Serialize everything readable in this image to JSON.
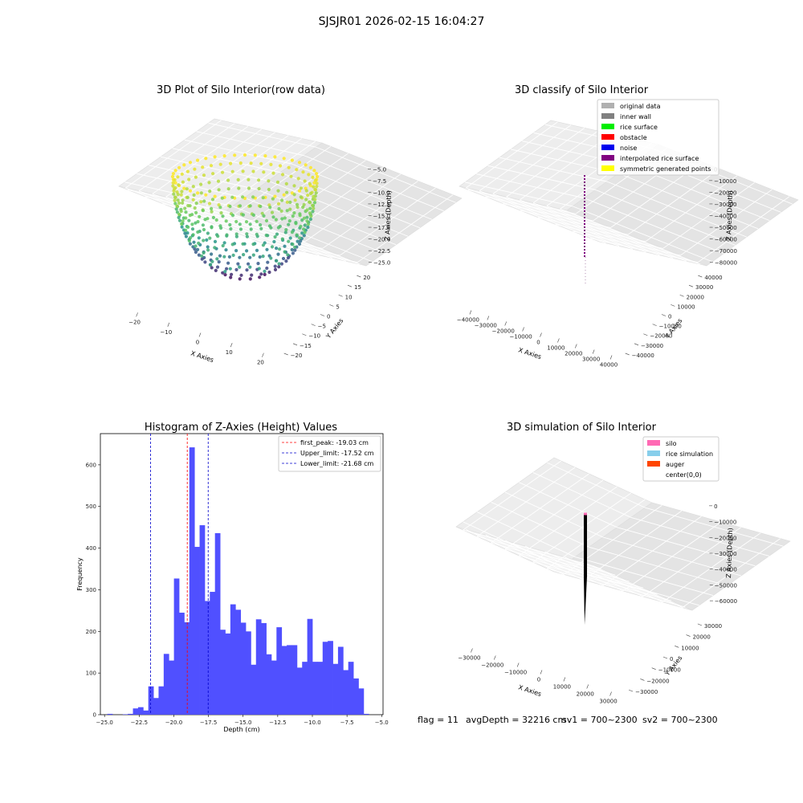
{
  "figure": {
    "title": "SJSJR01 2026-02-15 16:04:27",
    "status": {
      "flag": "flag = 11",
      "avg_depth": "avgDepth = 32216 cm",
      "sv1": "sv1 = 700~2300",
      "sv2": "sv2 = 700~2300"
    }
  },
  "panels": {
    "raw": {
      "title": "3D Plot of Silo Interior(row data)",
      "xlabel": "X Axies",
      "ylabel": "Y Axies",
      "zlabel": "Z Axies (Depth)",
      "xticks": [
        "−20",
        "−10",
        "0",
        "10",
        "20"
      ],
      "yticks": [
        "−20",
        "−15",
        "−10",
        "−5",
        "0",
        "5",
        "10",
        "15",
        "20"
      ],
      "zticks": [
        "−5.0",
        "−7.5",
        "−10.0",
        "−12.5",
        "−15.0",
        "−17.5",
        "−20.0",
        "−22.5",
        "−25.0"
      ]
    },
    "classify": {
      "title": "3D classify of Silo Interior",
      "xlabel": "X Axies",
      "ylabel": "Y Axies",
      "zlabel": "Z Axies (Depth)",
      "xticks": [
        "−40000",
        "−30000",
        "−20000",
        "−10000",
        "0",
        "10000",
        "20000",
        "30000",
        "40000"
      ],
      "yticks": [
        "−40000",
        "−30000",
        "−20000",
        "−10000",
        "0",
        "10000",
        "20000",
        "30000",
        "40000"
      ],
      "zticks": [
        "0",
        "−10000",
        "−20000",
        "−30000",
        "−40000",
        "−50000",
        "−60000",
        "−70000",
        "−80000"
      ],
      "legend": [
        {
          "label": "original data",
          "color": "#b0b0b0"
        },
        {
          "label": "inner wall",
          "color": "#808080"
        },
        {
          "label": "rice surface",
          "color": "#00ee00"
        },
        {
          "label": "obstacle",
          "color": "#ff0000"
        },
        {
          "label": "noise",
          "color": "#0000ee"
        },
        {
          "label": "interpolated rice surface",
          "color": "#800080"
        },
        {
          "label": "symmetric generated points",
          "color": "#ffff00"
        }
      ]
    },
    "simulation": {
      "title": "3D simulation of Silo Interior",
      "xlabel": "X Axies",
      "ylabel": "Y Axies",
      "zlabel": "Z Axies (Depth)",
      "xticks": [
        "−30000",
        "−20000",
        "−10000",
        "0",
        "10000",
        "20000",
        "30000"
      ],
      "yticks": [
        "−30000",
        "−20000",
        "−10000",
        "0",
        "10000",
        "20000",
        "30000"
      ],
      "zticks": [
        "0",
        "−10000",
        "−20000",
        "−30000",
        "−40000",
        "−50000",
        "−60000"
      ],
      "legend": [
        {
          "label": "silo",
          "color": "#ff69b4"
        },
        {
          "label": "rice simulation",
          "color": "#87ceeb"
        },
        {
          "label": "auger",
          "color": "#ff4500"
        },
        {
          "label": "center(0,0)",
          "color": "#ffffff"
        }
      ]
    }
  },
  "chart_data": {
    "type": "bar",
    "title": "Histogram of Z-Axies (Height) Values",
    "xlabel": "Depth (cm)",
    "ylabel": "Frequency",
    "xlim": [
      -25.3,
      -4.9
    ],
    "ylim": [
      0,
      675
    ],
    "xticks": [
      -25.0,
      -22.5,
      -20.0,
      -17.5,
      -15.0,
      -12.5,
      -10.0,
      -7.5,
      -5.0
    ],
    "xtick_labels": [
      "−25.0",
      "−22.5",
      "−20.0",
      "−17.5",
      "−15.0",
      "−12.5",
      "−10.0",
      "−7.5",
      "−5.0"
    ],
    "yticks": [
      0,
      100,
      200,
      300,
      400,
      500,
      600
    ],
    "bar_color": "#5050ff",
    "bin_start": -24.8,
    "bin_width": 0.37,
    "values": [
      2,
      0,
      0,
      1,
      2,
      15,
      18,
      10,
      68,
      40,
      68,
      146,
      130,
      327,
      245,
      222,
      642,
      403,
      455,
      273,
      295,
      436,
      204,
      195,
      265,
      252,
      221,
      200,
      120,
      229,
      220,
      145,
      130,
      210,
      165,
      167,
      167,
      113,
      127,
      230,
      127,
      127,
      175,
      177,
      122,
      163,
      107,
      127,
      87,
      63,
      2
    ],
    "lines": [
      {
        "label": "first_peak: -19.03 cm",
        "x": -19.03,
        "color": "#ff0000"
      },
      {
        "label": "Upper_limit: -17.52 cm",
        "x": -17.52,
        "color": "#0000cc"
      },
      {
        "label": "Lower_limit: -21.68 cm",
        "x": -21.68,
        "color": "#0000cc"
      }
    ],
    "legend_position": "top-right"
  }
}
